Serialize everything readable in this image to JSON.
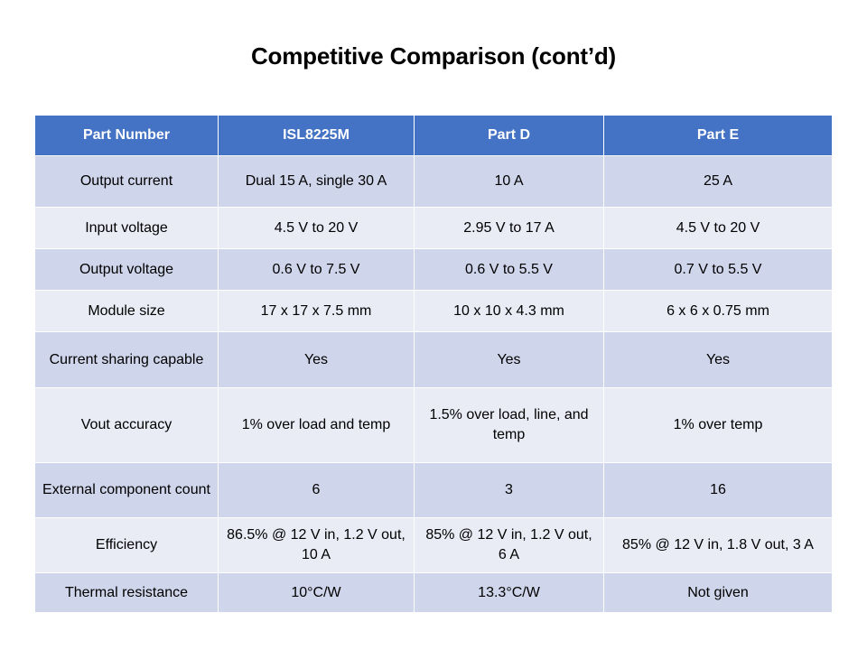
{
  "slide": {
    "title": "Competitive Comparison (cont’d)"
  },
  "table": {
    "headers": [
      "Part Number",
      "ISL8225M",
      "Part D",
      "Part E"
    ],
    "rows": [
      [
        "Output current",
        "Dual 15 A, single 30 A",
        "10 A",
        "25 A"
      ],
      [
        "Input voltage",
        "4.5 V to 20 V",
        "2.95 V to 17 A",
        "4.5 V to 20 V"
      ],
      [
        "Output voltage",
        "0.6 V to 7.5 V",
        "0.6 V to 5.5 V",
        "0.7 V to 5.5 V"
      ],
      [
        "Module size",
        "17 x 17 x 7.5 mm",
        "10 x 10 x 4.3 mm",
        "6 x 6 x 0.75 mm"
      ],
      [
        "Current sharing capable",
        "Yes",
        "Yes",
        "Yes"
      ],
      [
        "Vout accuracy",
        "1% over load and temp",
        "1.5% over load, line, and temp",
        "1% over temp"
      ],
      [
        "External component count",
        "6",
        "3",
        "16"
      ],
      [
        "Efficiency",
        "86.5% @ 12 V in, 1.2 V out, 10 A",
        "85% @ 12 V in, 1.2 V out, 6 A",
        "85% @ 12 V in, 1.8 V out, 3 A"
      ],
      [
        "Thermal resistance",
        "10°C/W",
        "13.3°C/W",
        "Not given"
      ]
    ]
  },
  "colors": {
    "header_bg": "#4472c4",
    "row_dark": "#cfd5ea",
    "row_light": "#e9ebf5"
  }
}
